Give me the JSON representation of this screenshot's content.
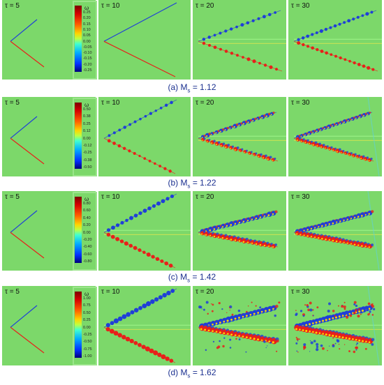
{
  "figure": {
    "rows": [
      {
        "caption_prefix": "(a) M",
        "caption_sub": "s",
        "caption_value": " = 1.12",
        "taus": [
          "τ = 5",
          "τ = 10",
          "τ = 20",
          "τ = 30"
        ],
        "colorbar": {
          "label": "ω",
          "ticks": [
            "0.25",
            "0.20",
            "0.15",
            "0.10",
            "0.05",
            "0.00",
            "-0.05",
            "-0.10",
            "-0.15",
            "-0.20",
            "-0.25"
          ]
        }
      },
      {
        "caption_prefix": "(b) M",
        "caption_sub": "s",
        "caption_value": " = 1.22",
        "taus": [
          "τ = 5",
          "τ = 10",
          "τ = 20",
          "τ = 30"
        ],
        "colorbar": {
          "label": "ω",
          "ticks": [
            "0.50",
            "0.38",
            "0.25",
            "0.12",
            "0.00",
            "-0.12",
            "-0.25",
            "-0.38",
            "-0.50"
          ]
        }
      },
      {
        "caption_prefix": "(c) M",
        "caption_sub": "s",
        "caption_value": " = 1.42",
        "taus": [
          "τ = 5",
          "τ = 10",
          "τ = 20",
          "τ = 30"
        ],
        "colorbar": {
          "label": "ω",
          "ticks": [
            "0.80",
            "0.60",
            "0.40",
            "0.20",
            "0.00",
            "-0.20",
            "-0.40",
            "-0.60",
            "-0.80"
          ]
        }
      },
      {
        "caption_prefix": "(d) M",
        "caption_sub": "s",
        "caption_value": " = 1.62",
        "taus": [
          "τ = 5",
          "τ = 10",
          "τ = 20",
          "τ = 30"
        ],
        "colorbar": {
          "label": "ω",
          "ticks": [
            "1.00",
            "0.75",
            "0.50",
            "0.25",
            "0.00",
            "-0.25",
            "-0.50",
            "-0.75",
            "-1.00"
          ]
        }
      }
    ],
    "colors": {
      "background_field": "#7cd86a",
      "positive_vorticity": "#e8201a",
      "negative_vorticity": "#1f3fd8",
      "caption_text": "#1a2f8f"
    }
  }
}
